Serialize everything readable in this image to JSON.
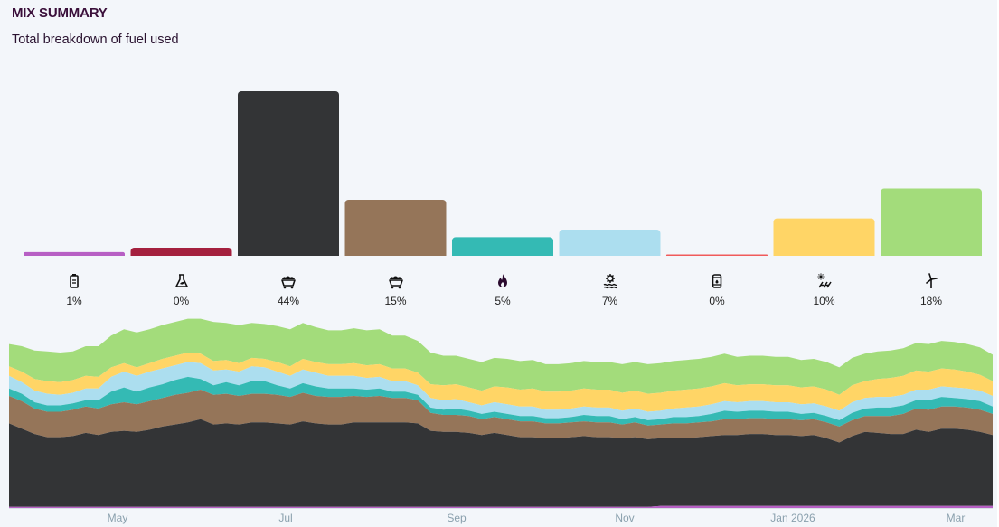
{
  "header": {
    "title": "MIX SUMMARY",
    "subtitle": "Total breakdown of fuel used"
  },
  "chart_data": [
    {
      "type": "bar",
      "categories": [
        "battery",
        "bioenergy",
        "black-coal",
        "brown-coal",
        "gas",
        "hydro",
        "distillate",
        "solar",
        "wind"
      ],
      "values": [
        1,
        0,
        44,
        15,
        5,
        7,
        0,
        10,
        18
      ],
      "value_labels": [
        "1%",
        "0%",
        "44%",
        "15%",
        "5%",
        "7%",
        "0%",
        "10%",
        "18%"
      ],
      "icons": [
        "battery-icon",
        "bioenergy-icon",
        "black-coal-icon",
        "brown-coal-icon",
        "gas-icon",
        "hydro-icon",
        "distillate-icon",
        "solar-icon",
        "wind-icon"
      ],
      "colors": [
        "#b75fc4",
        "#a4203e",
        "#333436",
        "#957559",
        "#34bab4",
        "#acdeef",
        "#f05b5b",
        "#ffd566",
        "#a3dc7b"
      ]
    },
    {
      "type": "area",
      "stacked": true,
      "x_ticks": [
        "May",
        "Jul",
        "Sep",
        "Nov",
        "Jan 2026",
        "Mar"
      ],
      "series": [
        {
          "key": "battery",
          "color": "#b75fc4",
          "values": [
            1,
            1,
            1,
            1,
            1,
            1,
            1,
            1,
            1,
            1,
            1,
            1,
            1,
            1,
            1,
            1,
            1,
            1,
            1,
            1,
            1,
            1,
            1,
            1,
            1,
            1,
            1,
            1,
            1,
            1,
            1,
            1,
            1,
            1,
            1,
            1,
            1,
            1,
            1,
            1,
            1,
            1,
            1,
            1,
            1,
            1,
            1,
            1,
            1,
            1,
            1,
            2,
            2,
            2,
            2,
            2,
            2,
            2,
            2,
            2,
            2,
            2,
            2,
            2,
            2,
            2,
            2,
            2,
            2,
            2,
            2,
            2,
            2,
            2,
            2,
            2,
            2,
            2
          ]
        },
        {
          "key": "black-coal",
          "color": "#333436",
          "values": [
            79,
            74,
            69,
            66,
            66,
            67,
            70,
            68,
            71,
            72,
            71,
            73,
            76,
            78,
            80,
            83,
            78,
            79,
            78,
            80,
            80,
            79,
            78,
            81,
            79,
            78,
            78,
            80,
            80,
            80,
            80,
            80,
            79,
            72,
            71,
            71,
            70,
            68,
            70,
            68,
            66,
            66,
            65,
            65,
            66,
            67,
            66,
            66,
            65,
            66,
            64,
            64,
            64,
            64,
            65,
            66,
            67,
            67,
            68,
            68,
            67,
            67,
            66,
            67,
            64,
            60,
            66,
            70,
            69,
            68,
            68,
            72,
            70,
            73,
            73,
            72,
            70,
            67
          ]
        },
        {
          "key": "brown-coal",
          "color": "#957559",
          "values": [
            26,
            26,
            24,
            24,
            24,
            25,
            25,
            25,
            26,
            27,
            26,
            27,
            27,
            28,
            28,
            28,
            28,
            28,
            27,
            27,
            27,
            27,
            26,
            27,
            26,
            26,
            26,
            25,
            24,
            25,
            23,
            23,
            22,
            17,
            16,
            16,
            16,
            15,
            15,
            15,
            15,
            15,
            14,
            14,
            14,
            14,
            14,
            14,
            13,
            14,
            13,
            13,
            14,
            14,
            14,
            14,
            15,
            15,
            15,
            15,
            15,
            15,
            15,
            15,
            15,
            15,
            15,
            15,
            16,
            17,
            19,
            20,
            21,
            21,
            21,
            21,
            21,
            20
          ]
        },
        {
          "key": "gas",
          "color": "#34bab4",
          "values": [
            7,
            7,
            6,
            6,
            6,
            6,
            6,
            8,
            12,
            14,
            12,
            13,
            13,
            14,
            15,
            10,
            9,
            11,
            10,
            12,
            12,
            9,
            8,
            9,
            9,
            8,
            8,
            7,
            7,
            7,
            6,
            6,
            5,
            5,
            5,
            6,
            5,
            5,
            5,
            5,
            5,
            5,
            5,
            5,
            5,
            6,
            6,
            6,
            5,
            5,
            5,
            5,
            6,
            6,
            6,
            7,
            8,
            7,
            7,
            7,
            7,
            7,
            6,
            6,
            6,
            6,
            7,
            7,
            8,
            8,
            8,
            8,
            9,
            9,
            8,
            8,
            8,
            7
          ]
        },
        {
          "key": "hydro",
          "color": "#acdeef",
          "values": [
            12,
            11,
            11,
            11,
            10,
            10,
            11,
            11,
            14,
            15,
            15,
            15,
            15,
            14,
            14,
            15,
            14,
            12,
            13,
            14,
            13,
            13,
            12,
            13,
            13,
            12,
            12,
            12,
            11,
            11,
            10,
            10,
            9,
            9,
            9,
            9,
            8,
            8,
            9,
            9,
            9,
            9,
            8,
            8,
            8,
            8,
            8,
            8,
            8,
            8,
            8,
            8,
            8,
            9,
            9,
            9,
            9,
            9,
            9,
            9,
            9,
            9,
            9,
            9,
            9,
            9,
            10,
            10,
            10,
            10,
            10,
            10,
            10,
            10,
            10,
            10,
            10,
            10
          ]
        },
        {
          "key": "solar",
          "color": "#ffd566",
          "values": [
            9,
            10,
            11,
            12,
            12,
            12,
            12,
            11,
            9,
            8,
            8,
            8,
            9,
            9,
            9,
            9,
            9,
            9,
            8,
            8,
            8,
            9,
            9,
            10,
            10,
            11,
            11,
            12,
            12,
            12,
            12,
            12,
            12,
            13,
            14,
            14,
            14,
            14,
            15,
            16,
            16,
            17,
            17,
            17,
            17,
            17,
            17,
            17,
            17,
            17,
            17,
            17,
            17,
            17,
            17,
            17,
            17,
            16,
            16,
            16,
            16,
            16,
            16,
            16,
            16,
            15,
            16,
            16,
            17,
            18,
            18,
            18,
            17,
            17,
            17,
            16,
            15,
            14
          ]
        },
        {
          "key": "wind",
          "color": "#a3dc7b",
          "values": [
            21,
            24,
            27,
            28,
            28,
            27,
            28,
            29,
            30,
            32,
            33,
            32,
            32,
            32,
            32,
            33,
            37,
            35,
            36,
            33,
            33,
            34,
            35,
            34,
            33,
            32,
            32,
            33,
            33,
            33,
            31,
            31,
            30,
            30,
            28,
            27,
            27,
            27,
            27,
            27,
            27,
            27,
            26,
            26,
            26,
            26,
            26,
            26,
            27,
            27,
            28,
            28,
            28,
            28,
            28,
            28,
            28,
            27,
            27,
            27,
            27,
            27,
            26,
            26,
            26,
            26,
            26,
            26,
            26,
            26,
            26,
            26,
            26,
            26,
            26,
            26,
            26,
            25
          ]
        }
      ]
    }
  ]
}
